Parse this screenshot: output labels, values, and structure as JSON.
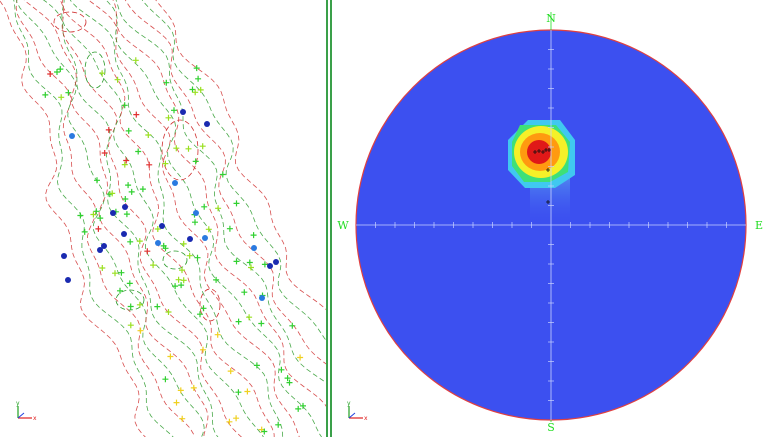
{
  "compass": {
    "north": "N",
    "south": "S",
    "east": "E",
    "west": "W"
  },
  "colors": {
    "stereonet_fill": "#3c50f0",
    "rim": "#e04040",
    "axis": "#c8d2ff",
    "grid_green": "#22dd22",
    "contour_red": "#d03030",
    "contour_green": "#2a9a2a",
    "divider": "#3aa04a",
    "axis_x": "#e02020",
    "axis_y": "#20a020"
  },
  "triad": {
    "x_label": "x",
    "y_label": "y"
  },
  "icons": {
    "triad_left": "xyz-axis-triad-icon",
    "triad_right": "xyz-axis-triad-icon"
  }
}
